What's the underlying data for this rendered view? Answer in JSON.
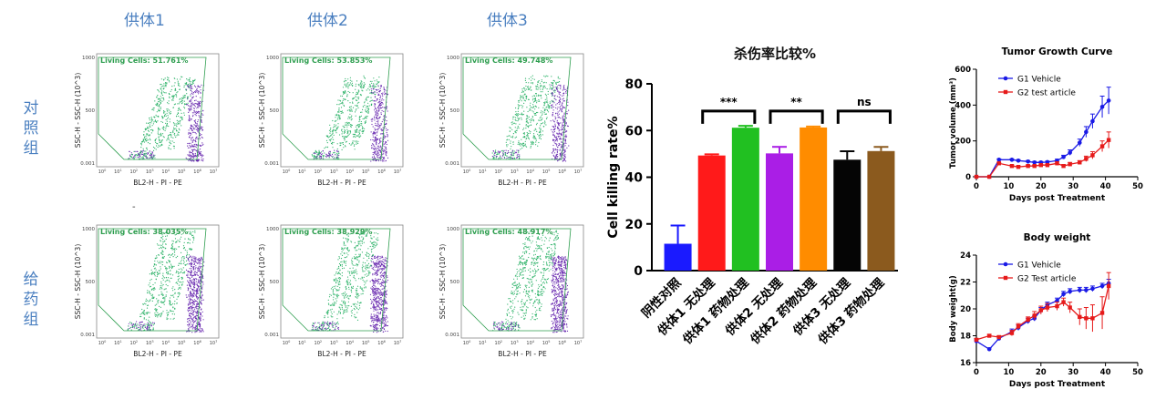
{
  "donors": [
    "供体1",
    "供体2",
    "供体3"
  ],
  "rows": [
    "对照组",
    "给药组"
  ],
  "stray_mark": "-",
  "flow_plots": {
    "y_axis_label": "SSC-H - SSC-H (10^3)",
    "x_axis_label": "BL2-H - PI - PE",
    "y_ticks": [
      "1000",
      "500",
      "0.001"
    ],
    "x_ticks": [
      "10",
      "10",
      "10",
      "10",
      "10",
      "10",
      "10",
      "10"
    ],
    "x_tick_exponents": [
      "0",
      "1",
      "2",
      "3",
      "4",
      "5",
      "6",
      "7"
    ],
    "panels": [
      {
        "row": 0,
        "col": 0,
        "gate_label": "Living Cells: 51.761%"
      },
      {
        "row": 0,
        "col": 1,
        "gate_label": "Living Cells: 53.853%"
      },
      {
        "row": 0,
        "col": 2,
        "gate_label": "Living Cells: 49.748%"
      },
      {
        "row": 1,
        "col": 0,
        "gate_label": "Living Cells: 38.035%"
      },
      {
        "row": 1,
        "col": 1,
        "gate_label": "Living Cells: 38.929%"
      },
      {
        "row": 1,
        "col": 2,
        "gate_label": "Living Cells: 48.917%"
      }
    ],
    "colors": {
      "living": "#2fb36a",
      "dead": "#6a2bb0",
      "gate": "#2e9e4f",
      "gate_text": "#2e9e4f"
    }
  },
  "chart_data": [
    {
      "type": "bar",
      "title": "杀伤率比较%",
      "ylabel": "Cell killing rate%",
      "ylim": [
        0,
        80
      ],
      "yticks": [
        0,
        20,
        40,
        60,
        80
      ],
      "categories": [
        "阴性对照",
        "供体1 无处理",
        "供体1 药物处理",
        "供体2 无处理",
        "供体2 药物处理",
        "供体3 无处理",
        "供体3 药物处理"
      ],
      "values": [
        11.5,
        49.3,
        61.2,
        50.2,
        61.3,
        47.5,
        51.2
      ],
      "errors": [
        7.8,
        0.5,
        0.8,
        2.8,
        0.4,
        3.6,
        1.8
      ],
      "colors": [
        "#1a1aff",
        "#ff1a1a",
        "#21c021",
        "#aa1ee6",
        "#ff8c00",
        "#050505",
        "#8b5a1e"
      ],
      "significance": [
        {
          "from": 1,
          "to": 2,
          "label": "***"
        },
        {
          "from": 3,
          "to": 4,
          "label": "**"
        },
        {
          "from": 5,
          "to": 6,
          "label": "ns"
        }
      ]
    },
    {
      "type": "line",
      "title": "Tumor Growth Curve",
      "xlabel": "Days post Treatment",
      "ylabel": "Tumor volume (mm³)",
      "xlim": [
        0,
        50
      ],
      "ylim": [
        0,
        600
      ],
      "xticks": [
        0,
        10,
        20,
        30,
        40,
        50
      ],
      "yticks": [
        0,
        200,
        400,
        600
      ],
      "legend": "top-left",
      "series": [
        {
          "name": "G1 Vehicle",
          "color": "#1a1ae6",
          "marker": "circle",
          "x": [
            0,
            4,
            7,
            11,
            13,
            16,
            18,
            20,
            22,
            25,
            27,
            29,
            32,
            34,
            36,
            39,
            41
          ],
          "y": [
            0,
            0,
            95,
            95,
            90,
            85,
            80,
            80,
            82,
            90,
            110,
            135,
            190,
            250,
            310,
            390,
            425
          ],
          "err": [
            0,
            0,
            5,
            5,
            5,
            5,
            5,
            5,
            5,
            8,
            10,
            15,
            20,
            30,
            40,
            60,
            75
          ]
        },
        {
          "name": "G2 test article",
          "color": "#e61a1a",
          "marker": "square",
          "x": [
            0,
            4,
            7,
            11,
            13,
            16,
            18,
            20,
            22,
            25,
            27,
            29,
            32,
            34,
            36,
            39,
            41
          ],
          "y": [
            0,
            0,
            75,
            60,
            55,
            60,
            60,
            65,
            65,
            75,
            60,
            70,
            80,
            100,
            120,
            170,
            205
          ],
          "err": [
            0,
            0,
            5,
            5,
            5,
            5,
            5,
            5,
            5,
            8,
            8,
            10,
            10,
            15,
            20,
            30,
            45
          ]
        }
      ]
    },
    {
      "type": "line",
      "title": "Body weight",
      "xlabel": "Days post Treatment",
      "ylabel": "Body weight(g)",
      "xlim": [
        0,
        50
      ],
      "ylim": [
        16,
        24
      ],
      "xticks": [
        0,
        10,
        20,
        30,
        40,
        50
      ],
      "yticks": [
        16,
        18,
        20,
        22,
        24
      ],
      "legend": "top-left",
      "series": [
        {
          "name": "G1 Vehicle",
          "color": "#1a1ae6",
          "marker": "circle",
          "x": [
            0,
            4,
            7,
            11,
            13,
            16,
            18,
            20,
            22,
            25,
            27,
            29,
            32,
            34,
            36,
            39,
            41
          ],
          "y": [
            17.6,
            17.0,
            17.8,
            18.3,
            18.6,
            19.1,
            19.3,
            19.9,
            20.3,
            20.6,
            21.1,
            21.3,
            21.4,
            21.4,
            21.5,
            21.7,
            21.9
          ],
          "err": [
            0.1,
            0.1,
            0.1,
            0.2,
            0.2,
            0.2,
            0.2,
            0.2,
            0.2,
            0.2,
            0.2,
            0.2,
            0.2,
            0.2,
            0.2,
            0.2,
            0.3
          ]
        },
        {
          "name": "G2 Test article",
          "color": "#e61a1a",
          "marker": "square",
          "x": [
            0,
            4,
            7,
            11,
            13,
            16,
            18,
            20,
            22,
            25,
            27,
            29,
            32,
            34,
            36,
            39,
            41
          ],
          "y": [
            17.7,
            18.0,
            17.9,
            18.2,
            18.7,
            19.2,
            19.5,
            19.9,
            20.1,
            20.2,
            20.5,
            20.1,
            19.4,
            19.3,
            19.3,
            19.7,
            21.7
          ],
          "err": [
            0.1,
            0.1,
            0.1,
            0.2,
            0.2,
            0.2,
            0.3,
            0.3,
            0.3,
            0.3,
            0.3,
            0.4,
            0.6,
            0.8,
            1.0,
            1.2,
            1.0
          ]
        }
      ]
    }
  ]
}
